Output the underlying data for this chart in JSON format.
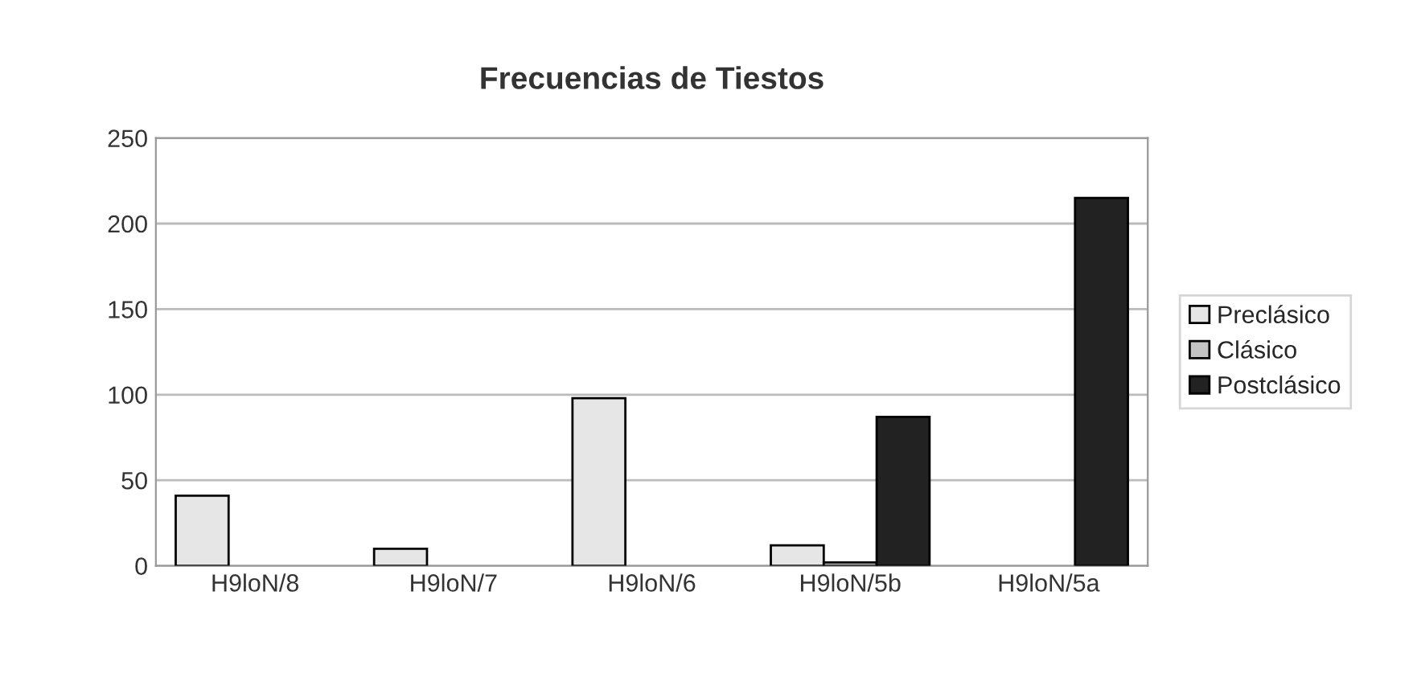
{
  "chart_data": {
    "type": "bar",
    "title": "Frecuencias de Tiestos",
    "categories": [
      "H9loN/8",
      "H9loN/7",
      "H9loN/6",
      "H9loN/5b",
      "H9loN/5a"
    ],
    "series": [
      {
        "name": "Preclásico",
        "color": "#e6e6e6",
        "values": [
          41,
          10,
          98,
          12,
          null
        ]
      },
      {
        "name": "Clásico",
        "color": "#c4c4c4",
        "values": [
          null,
          null,
          null,
          2,
          null
        ]
      },
      {
        "name": "Postclásico",
        "color": "#222222",
        "values": [
          null,
          null,
          null,
          87,
          215
        ]
      }
    ],
    "ylim": [
      0,
      250
    ],
    "yticks": [
      0,
      50,
      100,
      150,
      200,
      250
    ],
    "grid": "y",
    "legend": "right"
  }
}
